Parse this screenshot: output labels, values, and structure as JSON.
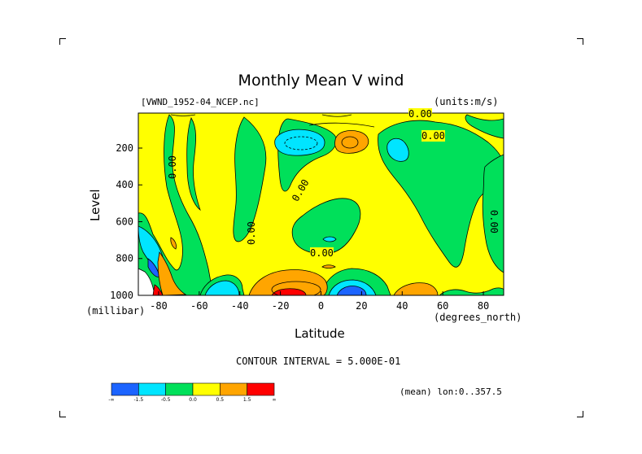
{
  "header": {
    "title": "Monthly Mean V wind",
    "dataset": "[VWND_1952-04_NCEP.nc]",
    "units": "(units:m/s)"
  },
  "footer": {
    "contour_interval": "CONTOUR INTERVAL = 5.000E-01",
    "averaging": "(mean) lon:0..357.5"
  },
  "colorbar": {
    "labels": [
      "-∞",
      "-1.5",
      "-0.5",
      "0.0",
      "0.5",
      "1.5",
      "∞"
    ],
    "colors": [
      "#1c64ff",
      "#00e5ff",
      "#00e05a",
      "#ffff00",
      "#ffa500",
      "#ff0000"
    ]
  },
  "chart_data": {
    "type": "heatmap",
    "title": "Monthly Mean V wind",
    "xlabel": "Latitude",
    "ylabel": "Level",
    "x_unit": "(degrees_north)",
    "y_unit": "(millibar)",
    "xlim": [
      -90,
      90
    ],
    "ylim": [
      1000,
      10
    ],
    "x_ticks": [
      -80,
      -60,
      -40,
      -20,
      0,
      20,
      40,
      60,
      80
    ],
    "y_ticks": [
      200,
      400,
      600,
      800,
      1000
    ],
    "contour_labels": [
      "0.00",
      "0.00",
      "0.00",
      "0.00",
      "0.00",
      "0.00",
      "0.00"
    ],
    "palette": {
      "yellow": "#ffff00",
      "green": "#00e05a",
      "cyan": "#00e5ff",
      "orange": "#ffa500",
      "blue": "#1c64ff",
      "red": "#ff0000"
    }
  }
}
